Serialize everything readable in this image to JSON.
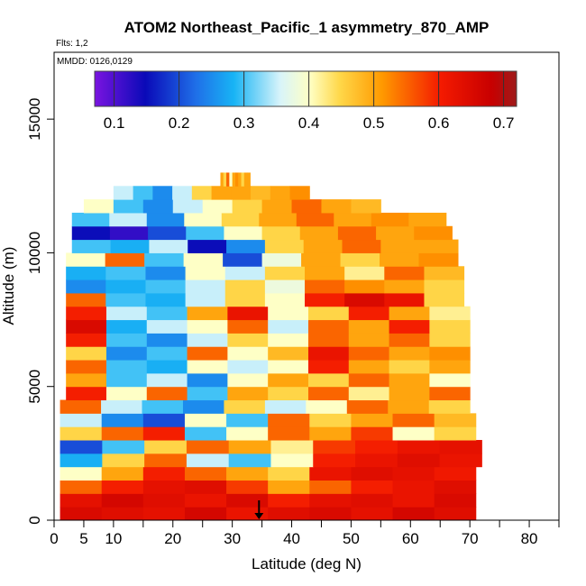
{
  "chart_data": {
    "type": "heatmap",
    "title": "ATOM2 Northeast_Pacific_1 asymmetry_870_AMP",
    "annotations": {
      "flights": "Flts: 1,2",
      "dates": "MMDD: 0126,0129"
    },
    "xlabel": "Latitude (deg N)",
    "ylabel": "Altitude (m)",
    "xlim": [
      0,
      85
    ],
    "ylim": [
      0,
      17500
    ],
    "xticks": [
      0,
      5,
      10,
      20,
      30,
      40,
      50,
      60,
      70,
      80
    ],
    "xtick_labels": [
      "0",
      "5",
      "10",
      "20",
      "30",
      "40",
      "50",
      "60",
      "70",
      "80"
    ],
    "xticks_minor": [
      15,
      25,
      35,
      45,
      55,
      65,
      75,
      85
    ],
    "yticks": [
      0,
      5000,
      10000,
      15000
    ],
    "ytick_labels": [
      "0",
      "5000",
      "10000",
      "15000"
    ],
    "colorbar": {
      "range": [
        0.07,
        0.72
      ],
      "ticks": [
        0.1,
        0.2,
        0.3,
        0.4,
        0.5,
        0.6,
        0.7
      ],
      "tick_labels": [
        "0.1",
        "0.2",
        "0.3",
        "0.4",
        "0.5",
        "0.6",
        "0.7"
      ],
      "colors": [
        "#7a14e0",
        "#0a0ab8",
        "#1f6fe8",
        "#18b4f5",
        "#d8f4fa",
        "#ffffc4",
        "#ffd84a",
        "#ff9a00",
        "#f41a00",
        "#c80000",
        "#9e1a1a"
      ],
      "color_stops": [
        0.0,
        0.12,
        0.24,
        0.33,
        0.44,
        0.51,
        0.58,
        0.68,
        0.82,
        0.94,
        1.0
      ]
    },
    "marker": {
      "latitude": 34.5,
      "direction": "down"
    },
    "layers": [
      {
        "alt": 250,
        "lat": [
          1,
          71
        ],
        "values": [
          0.65,
          0.64,
          0.63,
          0.66,
          0.62,
          0.64,
          0.65,
          0.63,
          0.66,
          0.64
        ]
      },
      {
        "alt": 750,
        "lat": [
          1,
          71
        ],
        "values": [
          0.63,
          0.66,
          0.64,
          0.62,
          0.65,
          0.6,
          0.63,
          0.64,
          0.62,
          0.65
        ]
      },
      {
        "alt": 1250,
        "lat": [
          1,
          71
        ],
        "values": [
          0.55,
          0.6,
          0.63,
          0.64,
          0.58,
          0.5,
          0.55,
          0.6,
          0.62,
          0.64
        ]
      },
      {
        "alt": 1750,
        "lat": [
          1,
          71
        ],
        "values": [
          0.4,
          0.5,
          0.6,
          0.55,
          0.5,
          0.45,
          0.62,
          0.64,
          0.63,
          0.61
        ]
      },
      {
        "alt": 2250,
        "lat": [
          1,
          72
        ],
        "values": [
          0.28,
          0.45,
          0.55,
          0.35,
          0.3,
          0.4,
          0.6,
          0.62,
          0.64,
          0.62
        ]
      },
      {
        "alt": 2750,
        "lat": [
          1,
          72
        ],
        "values": [
          0.2,
          0.3,
          0.45,
          0.55,
          0.5,
          0.42,
          0.58,
          0.6,
          0.62,
          0.63
        ]
      },
      {
        "alt": 3250,
        "lat": [
          1,
          71
        ],
        "values": [
          0.45,
          0.55,
          0.6,
          0.3,
          0.4,
          0.55,
          0.5,
          0.58,
          0.4,
          0.45
        ]
      },
      {
        "alt": 3750,
        "lat": [
          1,
          71
        ],
        "values": [
          0.35,
          0.25,
          0.2,
          0.4,
          0.3,
          0.55,
          0.45,
          0.5,
          0.55,
          0.48
        ]
      },
      {
        "alt": 4250,
        "lat": [
          1,
          70
        ],
        "values": [
          0.55,
          0.35,
          0.3,
          0.25,
          0.45,
          0.35,
          0.4,
          0.55,
          0.5,
          0.45
        ]
      },
      {
        "alt": 4750,
        "lat": [
          2,
          70
        ],
        "values": [
          0.6,
          0.4,
          0.55,
          0.3,
          0.5,
          0.45,
          0.55,
          0.42,
          0.5,
          0.55
        ]
      },
      {
        "alt": 5250,
        "lat": [
          2,
          70
        ],
        "values": [
          0.5,
          0.3,
          0.35,
          0.25,
          0.4,
          0.5,
          0.45,
          0.55,
          0.5,
          0.4
        ]
      },
      {
        "alt": 5750,
        "lat": [
          2,
          70
        ],
        "values": [
          0.55,
          0.3,
          0.28,
          0.4,
          0.35,
          0.4,
          0.6,
          0.5,
          0.45,
          0.5
        ]
      },
      {
        "alt": 6250,
        "lat": [
          2,
          70
        ],
        "values": [
          0.45,
          0.25,
          0.3,
          0.55,
          0.4,
          0.48,
          0.62,
          0.55,
          0.5,
          0.52
        ]
      },
      {
        "alt": 6750,
        "lat": [
          2,
          70
        ],
        "values": [
          0.6,
          0.3,
          0.25,
          0.35,
          0.45,
          0.4,
          0.55,
          0.5,
          0.55,
          0.45
        ]
      },
      {
        "alt": 7250,
        "lat": [
          2,
          70
        ],
        "values": [
          0.65,
          0.28,
          0.35,
          0.4,
          0.55,
          0.35,
          0.55,
          0.5,
          0.6,
          0.45
        ]
      },
      {
        "alt": 7750,
        "lat": [
          2,
          70
        ],
        "values": [
          0.6,
          0.35,
          0.3,
          0.5,
          0.62,
          0.4,
          0.45,
          0.6,
          0.5,
          0.42
        ]
      },
      {
        "alt": 8250,
        "lat": [
          2,
          69
        ],
        "values": [
          0.55,
          0.3,
          0.28,
          0.35,
          0.45,
          0.4,
          0.6,
          0.65,
          0.62,
          0.45
        ]
      },
      {
        "alt": 8750,
        "lat": [
          2,
          69
        ],
        "values": [
          0.25,
          0.28,
          0.3,
          0.35,
          0.45,
          0.38,
          0.55,
          0.52,
          0.5,
          0.45
        ]
      },
      {
        "alt": 9250,
        "lat": [
          2,
          69
        ],
        "values": [
          0.28,
          0.3,
          0.25,
          0.4,
          0.35,
          0.45,
          0.5,
          0.42,
          0.55,
          0.48
        ]
      },
      {
        "alt": 9750,
        "lat": [
          2,
          68
        ],
        "values": [
          0.4,
          0.55,
          0.3,
          0.4,
          0.2,
          0.38,
          0.5,
          0.45,
          0.5,
          0.52
        ]
      },
      {
        "alt": 10250,
        "lat": [
          3,
          68
        ],
        "values": [
          0.3,
          0.28,
          0.35,
          0.15,
          0.25,
          0.45,
          0.5,
          0.55,
          0.5,
          0.5
        ]
      },
      {
        "alt": 10750,
        "lat": [
          3,
          67
        ],
        "values": [
          0.15,
          0.12,
          0.2,
          0.3,
          0.4,
          0.45,
          0.5,
          0.55,
          0.5,
          0.52
        ]
      },
      {
        "alt": 11250,
        "lat": [
          3,
          66
        ],
        "values": [
          0.3,
          0.35,
          0.25,
          0.4,
          0.45,
          0.5,
          0.55,
          0.5,
          0.52,
          0.5
        ]
      },
      {
        "alt": 11750,
        "lat": [
          5,
          55
        ],
        "values": [
          0.4,
          0.3,
          0.25,
          0.35,
          0.4,
          0.45,
          0.5,
          0.55,
          0.5,
          0.48
        ]
      },
      {
        "alt": 12250,
        "lat": [
          10,
          43
        ],
        "values": [
          0.35,
          0.3,
          0.25,
          0.35,
          0.45,
          0.5,
          0.5,
          0.48,
          0.5,
          0.52
        ]
      },
      {
        "alt": 12750,
        "lat": [
          28,
          33
        ],
        "values": [
          0.5,
          0.45,
          0.55,
          0.4,
          0.5,
          0.52,
          0.5,
          0.45,
          0.5,
          0.5
        ]
      }
    ]
  }
}
